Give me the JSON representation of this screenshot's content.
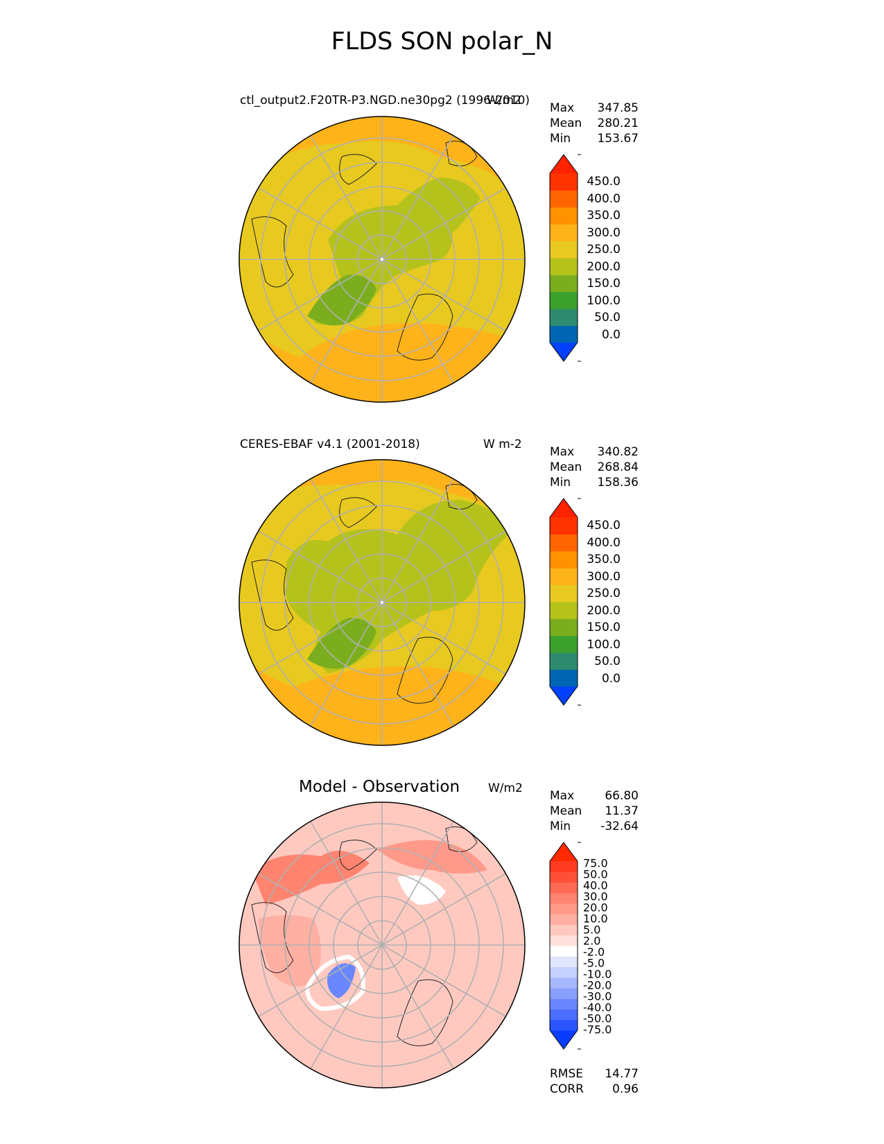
{
  "figure": {
    "title": "FLDS SON polar_N"
  },
  "panels": [
    {
      "id": "model",
      "left_title": "ctl_output2.F20TR-P3.NGD.ne30pg2 (1996-2010)",
      "units": "W/m2",
      "stats": {
        "max_label": "Max",
        "max": "347.85",
        "mean_label": "Mean",
        "mean": "280.21",
        "min_label": "Min",
        "min": "153.67"
      },
      "colorbar": {
        "ticks": [
          "450.0",
          "400.0",
          "350.0",
          "300.0",
          "250.0",
          "200.0",
          "150.0",
          "100.0",
          "50.0",
          "0.0"
        ],
        "colors": [
          "#0040ff",
          "#0066b3",
          "#2e8b6f",
          "#3ca02c",
          "#7aae1e",
          "#b5c21c",
          "#e8c920",
          "#ffb31a",
          "#ff9100",
          "#ff6600",
          "#ff3300",
          "#ff2200"
        ]
      }
    },
    {
      "id": "obs",
      "left_title": "CERES-EBAF v4.1 (2001-2018)",
      "units": "W m-2",
      "stats": {
        "max_label": "Max",
        "max": "340.82",
        "mean_label": "Mean",
        "mean": "268.84",
        "min_label": "Min",
        "min": "158.36"
      },
      "colorbar": {
        "ticks": [
          "450.0",
          "400.0",
          "350.0",
          "300.0",
          "250.0",
          "200.0",
          "150.0",
          "100.0",
          "50.0",
          "0.0"
        ],
        "colors": [
          "#0040ff",
          "#0066b3",
          "#2e8b6f",
          "#3ca02c",
          "#7aae1e",
          "#b5c21c",
          "#e8c920",
          "#ffb31a",
          "#ff9100",
          "#ff6600",
          "#ff3300",
          "#ff2200"
        ]
      }
    },
    {
      "id": "diff",
      "center_title": "Model - Observation",
      "units": "W/m2",
      "stats": {
        "max_label": "Max",
        "max": "66.80",
        "mean_label": "Mean",
        "mean": "11.37",
        "min_label": "Min",
        "min": "-32.64"
      },
      "colorbar": {
        "ticks": [
          "75.0",
          "50.0",
          "40.0",
          "30.0",
          "20.0",
          "10.0",
          "5.0",
          "2.0",
          "-2.0",
          "-5.0",
          "-10.0",
          "-20.0",
          "-30.0",
          "-40.0",
          "-50.0",
          "-75.0"
        ],
        "colors": [
          "#0a3cff",
          "#2a55ff",
          "#4a6eff",
          "#6a87ff",
          "#8aa0ff",
          "#a8b8ff",
          "#c4d0ff",
          "#e0e6ff",
          "#ffffff",
          "#ffe0dc",
          "#ffc9c0",
          "#ffb0a3",
          "#ff9a8a",
          "#ff8470",
          "#ff6a55",
          "#ff5037",
          "#ff3a1f",
          "#ff2a00"
        ]
      },
      "metrics": {
        "rmse_label": "RMSE",
        "rmse": "14.77",
        "corr_label": "CORR",
        "corr": "0.96"
      }
    }
  ]
}
